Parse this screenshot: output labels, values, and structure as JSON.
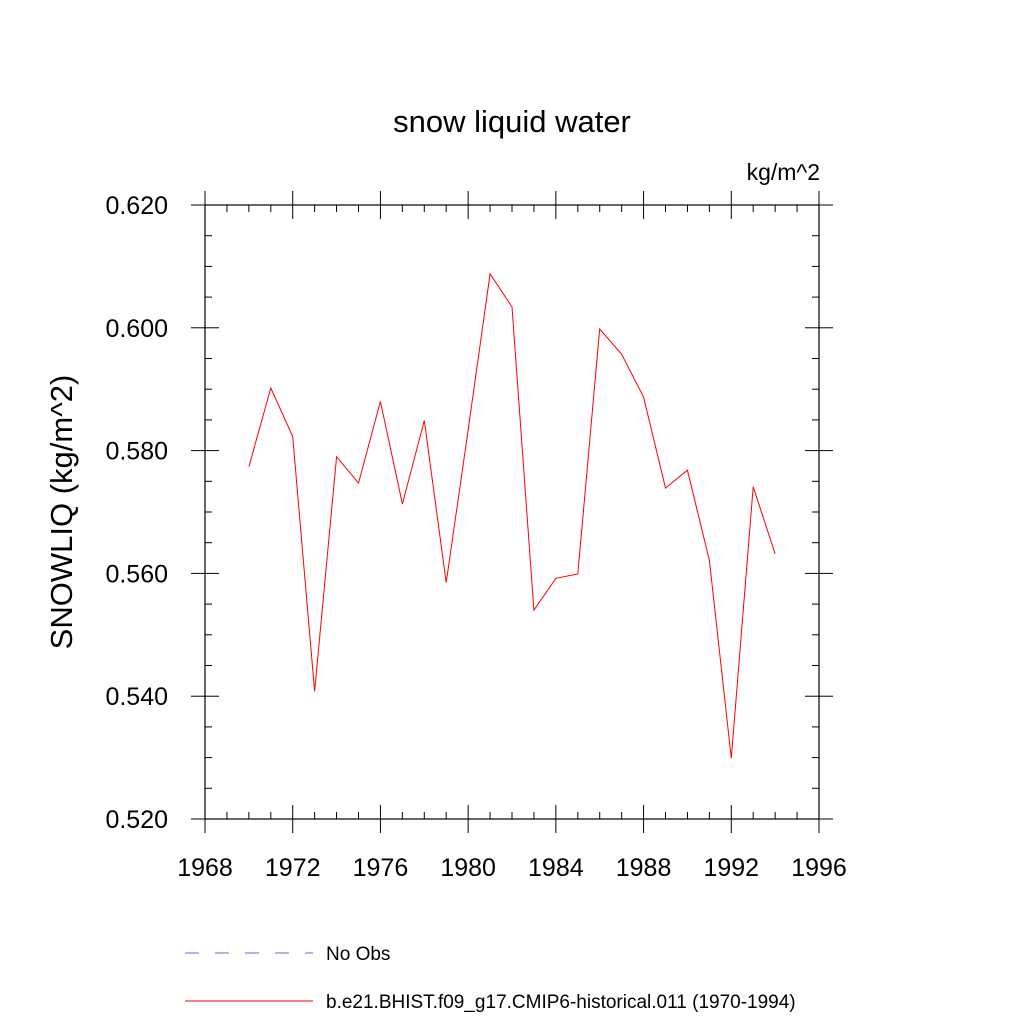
{
  "chart_data": {
    "type": "line",
    "title": "snow liquid water",
    "units_label": "kg/m^2",
    "ylabel": "SNOWLIQ  (kg/m^2)",
    "xlabel": "",
    "xlim": [
      1968,
      1996
    ],
    "ylim": [
      0.52,
      0.62
    ],
    "x_ticks": [
      1968,
      1972,
      1976,
      1980,
      1984,
      1988,
      1992,
      1996
    ],
    "x_tick_labels": [
      "1968",
      "1972",
      "1976",
      "1980",
      "1984",
      "1988",
      "1992",
      "1996"
    ],
    "y_ticks": [
      0.52,
      0.54,
      0.56,
      0.58,
      0.6,
      0.62
    ],
    "y_tick_labels": [
      "0.520",
      "0.540",
      "0.560",
      "0.580",
      "0.600",
      "0.620"
    ],
    "grid": false,
    "legend_position": "bottom",
    "series": [
      {
        "name": "b.e21.BHIST.f09_g17.CMIP6-historical.011 (1970-1994)",
        "color": "#ff0000",
        "dash": "solid",
        "x": [
          1970,
          1971,
          1972,
          1973,
          1974,
          1975,
          1976,
          1977,
          1978,
          1979,
          1980,
          1981,
          1982,
          1983,
          1984,
          1985,
          1986,
          1987,
          1988,
          1989,
          1990,
          1991,
          1992,
          1993,
          1994
        ],
        "y": [
          0.5774,
          0.5902,
          0.5823,
          0.5408,
          0.579,
          0.5747,
          0.588,
          0.5713,
          0.5849,
          0.5585,
          0.5833,
          0.6088,
          0.6034,
          0.554,
          0.5592,
          0.5599,
          0.5998,
          0.5957,
          0.5887,
          0.5739,
          0.5768,
          0.5621,
          0.5299,
          0.5741,
          0.5632
        ]
      },
      {
        "name": "No Obs",
        "color": "#6666cc",
        "dash": "dashed",
        "x": [],
        "y": []
      }
    ]
  }
}
